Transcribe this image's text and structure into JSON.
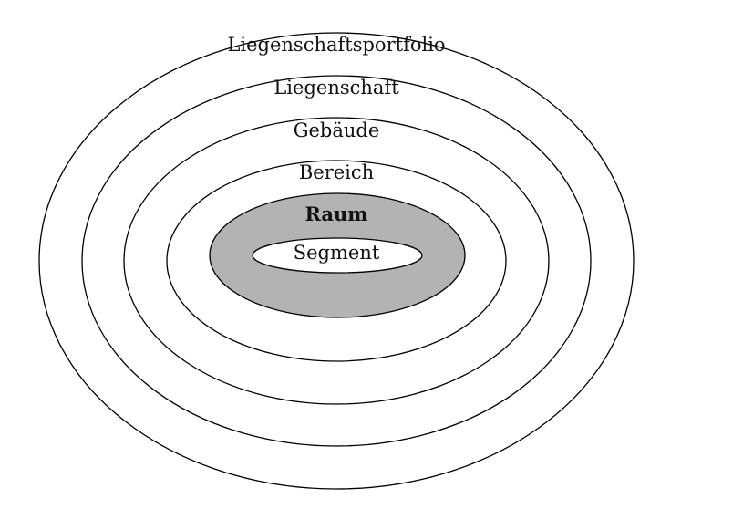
{
  "diagram": {
    "levels": [
      {
        "label": "Liegenschaftsportfolio",
        "fill": "#ffffff",
        "bold": false
      },
      {
        "label": "Liegenschaft",
        "fill": "#ffffff",
        "bold": false
      },
      {
        "label": "Gebäude",
        "fill": "#ffffff",
        "bold": false
      },
      {
        "label": "Bereich",
        "fill": "#ffffff",
        "bold": false
      },
      {
        "label": "Raum",
        "fill": "#b3b3b3",
        "bold": true
      },
      {
        "label": "Segment",
        "fill": "#ffffff",
        "bold": false
      }
    ],
    "stroke_color": "#000000"
  }
}
